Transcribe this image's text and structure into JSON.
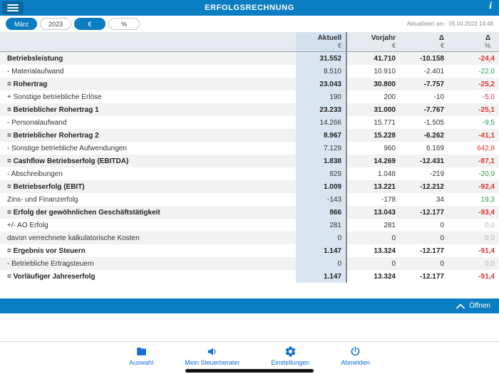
{
  "colors": {
    "accent_blue": "#0b7dc2",
    "tabbar_blue": "#1270d6",
    "negative_red": "#e03330",
    "positive_green": "#2da04a",
    "neutral_gray": "#b5b5b5"
  },
  "header": {
    "title": "ERFOLGSRECHNUNG",
    "info_glyph": "i"
  },
  "filterbar": {
    "updated_label": "Aktualisiert am : 05.04.2023 14:49"
  },
  "filters": [
    {
      "label": "März",
      "active": true
    },
    {
      "label": "2023",
      "active": false
    },
    {
      "label": "€",
      "active": true
    },
    {
      "label": "%",
      "active": false
    }
  ],
  "table": {
    "columns": [
      {
        "title": "Aktuell",
        "unit": "€"
      },
      {
        "title": "Vorjahr",
        "unit": "€"
      },
      {
        "title": "Δ",
        "unit": "€"
      },
      {
        "title": "Δ",
        "unit": "%"
      }
    ],
    "rows": [
      {
        "label": "Betriebsleistung",
        "bold": true,
        "aktuell": "31.552",
        "vorjahr": "41.710",
        "delta": "-10.158",
        "delta_pct": "-24,4",
        "delta_pct_color": "red"
      },
      {
        "label": "- Materialaufwand",
        "bold": false,
        "aktuell": "8.510",
        "vorjahr": "10.910",
        "delta": "-2.401",
        "delta_pct": "-22,0",
        "delta_pct_color": "green"
      },
      {
        "label": "= Rohertrag",
        "bold": true,
        "aktuell": "23.043",
        "vorjahr": "30.800",
        "delta": "-7.757",
        "delta_pct": "-25,2",
        "delta_pct_color": "red"
      },
      {
        "label": "+ Sonstige betriebliche Erlöse",
        "bold": false,
        "aktuell": "190",
        "vorjahr": "200",
        "delta": "-10",
        "delta_pct": "-5,0",
        "delta_pct_color": "red"
      },
      {
        "label": "= Betrieblicher Rohertrag 1",
        "bold": true,
        "aktuell": "23.233",
        "vorjahr": "31.000",
        "delta": "-7.767",
        "delta_pct": "-25,1",
        "delta_pct_color": "red"
      },
      {
        "label": "- Personalaufwand",
        "bold": false,
        "aktuell": "14.266",
        "vorjahr": "15.771",
        "delta": "-1.505",
        "delta_pct": "-9,5",
        "delta_pct_color": "green"
      },
      {
        "label": "= Betrieblicher Rohertrag 2",
        "bold": true,
        "aktuell": "8.967",
        "vorjahr": "15.228",
        "delta": "-6.262",
        "delta_pct": "-41,1",
        "delta_pct_color": "red"
      },
      {
        "label": "- Sonstige betriebliche Aufwendungen",
        "bold": false,
        "aktuell": "7.129",
        "vorjahr": "960",
        "delta": "6.169",
        "delta_pct": "642,8",
        "delta_pct_color": "red"
      },
      {
        "label": "= Cashflow Betriebserfolg (EBITDA)",
        "bold": true,
        "aktuell": "1.838",
        "vorjahr": "14.269",
        "delta": "-12.431",
        "delta_pct": "-87,1",
        "delta_pct_color": "red"
      },
      {
        "label": "- Abschreibungen",
        "bold": false,
        "aktuell": "829",
        "vorjahr": "1.048",
        "delta": "-219",
        "delta_pct": "-20,9",
        "delta_pct_color": "green"
      },
      {
        "label": "= Betriebserfolg (EBIT)",
        "bold": true,
        "aktuell": "1.009",
        "vorjahr": "13.221",
        "delta": "-12.212",
        "delta_pct": "-92,4",
        "delta_pct_color": "red"
      },
      {
        "label": "Zins- und Finanzerfolg",
        "bold": false,
        "aktuell": "-143",
        "vorjahr": "-178",
        "delta": "34",
        "delta_pct": "19,3",
        "delta_pct_color": "green"
      },
      {
        "label": "= Erfolg der gewöhnlichen Geschäftstätigkeit",
        "bold": true,
        "aktuell": "866",
        "vorjahr": "13.043",
        "delta": "-12.177",
        "delta_pct": "-93,4",
        "delta_pct_color": "red"
      },
      {
        "label": "+/- AO Erfolg",
        "bold": false,
        "aktuell": "281",
        "vorjahr": "281",
        "delta": "0",
        "delta_pct": "0,0",
        "delta_pct_color": "gray"
      },
      {
        "label": "davon verrechnete kalkulatorische Kosten",
        "bold": false,
        "aktuell": "0",
        "vorjahr": "0",
        "delta": "0",
        "delta_pct": "0,0",
        "delta_pct_color": "gray"
      },
      {
        "label": "= Ergebnis vor Steuern",
        "bold": true,
        "aktuell": "1.147",
        "vorjahr": "13.324",
        "delta": "-12.177",
        "delta_pct": "-91,4",
        "delta_pct_color": "red"
      },
      {
        "label": "- Betriebliche Ertragsteuern",
        "bold": false,
        "aktuell": "0",
        "vorjahr": "0",
        "delta": "0",
        "delta_pct": "0,0",
        "delta_pct_color": "gray"
      },
      {
        "label": "= Vorläufiger Jahreserfolg",
        "bold": true,
        "aktuell": "1.147",
        "vorjahr": "13.324",
        "delta": "-12.177",
        "delta_pct": "-91,4",
        "delta_pct_color": "red"
      }
    ]
  },
  "expander": {
    "label": "Öffnen"
  },
  "tabbar": {
    "items": [
      {
        "label": "Auswahl",
        "icon": "folder-icon"
      },
      {
        "label": "Mein Steuerberater",
        "icon": "megaphone-icon"
      },
      {
        "label": "Einstellungen",
        "icon": "gear-icon"
      },
      {
        "label": "Abmelden",
        "icon": "power-icon"
      }
    ]
  }
}
